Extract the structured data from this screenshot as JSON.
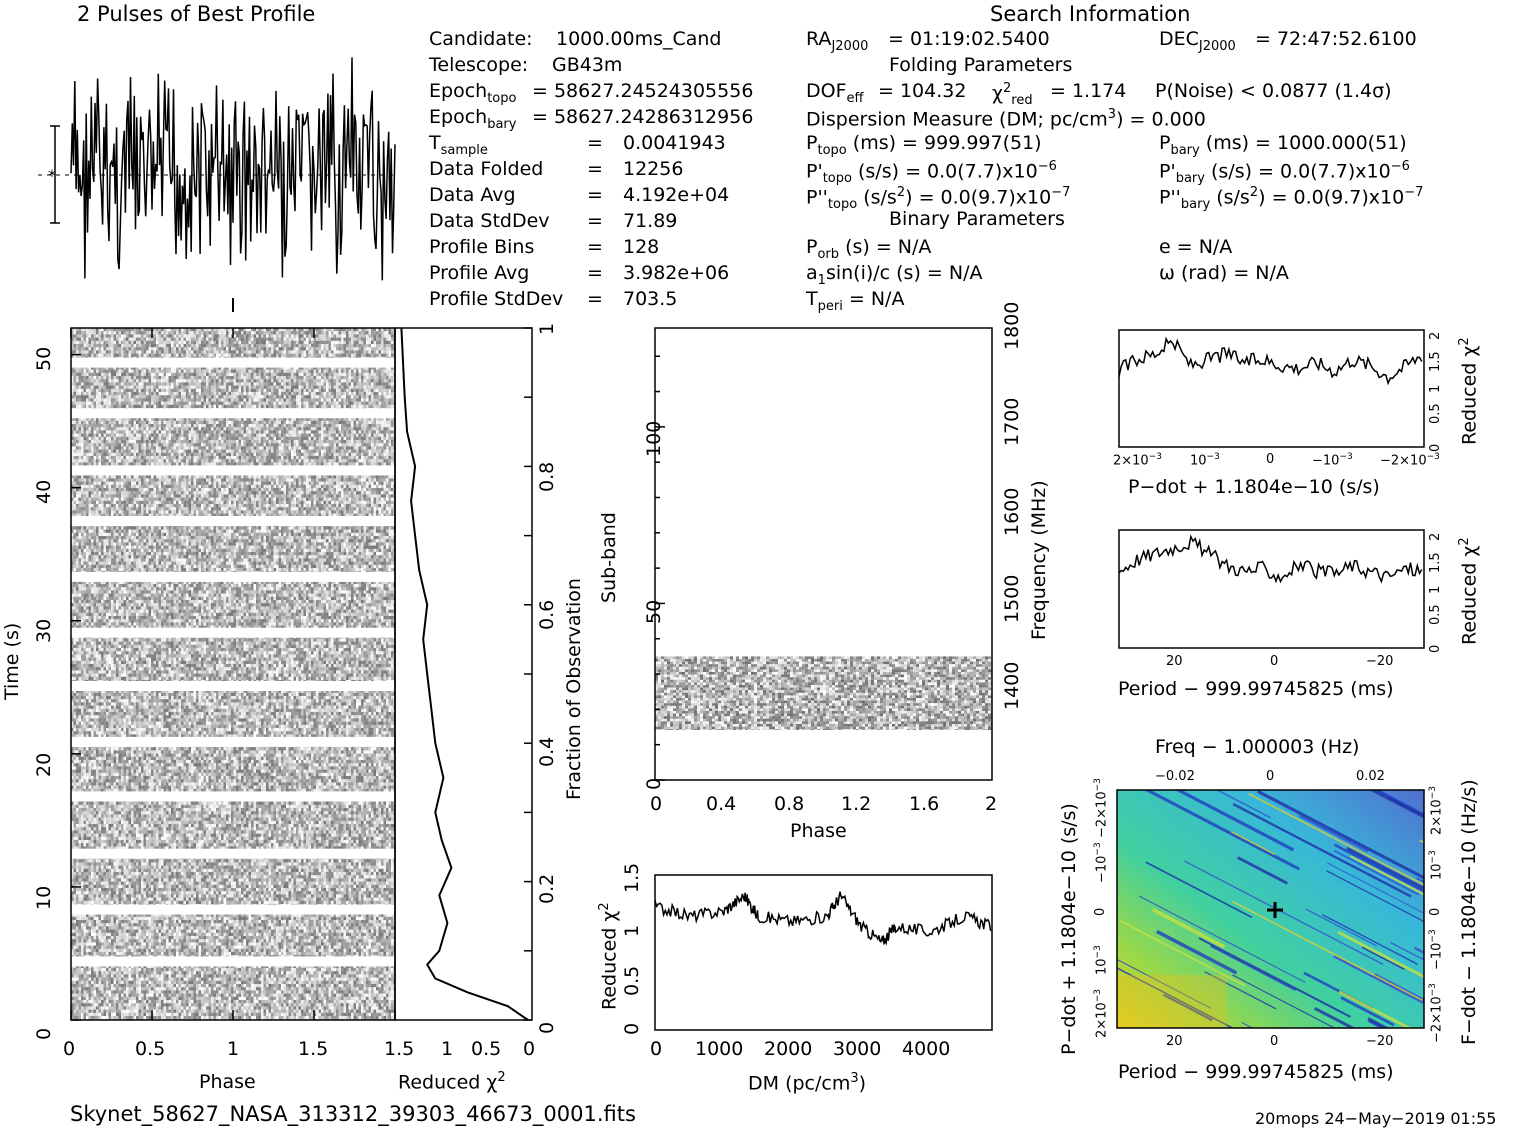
{
  "header": {
    "profile_title": "2 Pulses of Best Profile",
    "search_title": "Search Information",
    "folding_title": "Folding Parameters",
    "binary_title": "Binary Parameters"
  },
  "candidate_info": [
    {
      "label": "Candidate:",
      "value": "1000.00ms_Cand"
    },
    {
      "label": "Telescope:",
      "value": "GB43m"
    },
    {
      "label": "Epoch",
      "sub": "topo",
      "value": "= 58627.24524305556"
    },
    {
      "label": "Epoch",
      "sub": "bary",
      "value": "= 58627.24286312956"
    },
    {
      "label": "T",
      "sub": "sample",
      "value": "0.0041943"
    },
    {
      "label": "Data Folded",
      "value": "12256"
    },
    {
      "label": "Data Avg",
      "value": "4.192e+04"
    },
    {
      "label": "Data StdDev",
      "value": "71.89"
    },
    {
      "label": "Profile Bins",
      "value": "128"
    },
    {
      "label": "Profile Avg",
      "value": "3.982e+06"
    },
    {
      "label": "Profile StdDev",
      "value": "703.5"
    }
  ],
  "search_info": {
    "ra": "= 01:19:02.5400",
    "dec": "= 72:47:52.6100",
    "dof": "= 104.32",
    "chi2_red": "= 1.174",
    "p_noise": "P(Noise) < 0.0877   (1.4σ)",
    "dm": "Dispersion Measure (DM; pc/cm",
    "dm_value": ") = 0.000",
    "p_topo": "(ms) =  999.997(51)",
    "p_bary": "(ms) =  1000.000(51)",
    "pd_topo": "(s/s) = 0.0(7.7)x10",
    "pd_bary": "(s/s) = 0.0(7.7)x10",
    "pd_exp": "−6",
    "pdd_topo": "= 0.0(9.7)x10",
    "pdd_bary": "= 0.0(9.7)x10",
    "pdd_exp": "−7",
    "p_orb": "(s) = N/A",
    "e": "e = N/A",
    "a1": "sin(i)/c (s) = N/A",
    "omega": "ω (rad) = N/A",
    "t_peri": "= N/A"
  },
  "footer": {
    "filename": "Skynet_58627_NASA_313312_39303_46673_0001.fits",
    "stamp": "20mops 24−May−2019 01:55"
  },
  "colors": {
    "ink": "#000000",
    "block_light": "#f0f0f0",
    "block_dark": "#202020"
  },
  "chart_data": [
    {
      "type": "line",
      "title": "2 Pulses of Best Profile",
      "xlabel": "",
      "ylabel": "",
      "xlim": [
        0,
        2
      ],
      "note_pulses": 2
    },
    {
      "type": "heatmap",
      "xlabel": "Phase",
      "ylabel": "Time (s)",
      "xlim": [
        0,
        2
      ],
      "ylim": [
        0,
        52
      ],
      "x_ticks": [
        "0",
        "0.5",
        "1",
        "1.5"
      ],
      "y_ticks": [
        "0",
        "10",
        "20",
        "30",
        "40",
        "50"
      ],
      "white_gaps_s": [
        4.4,
        8.3,
        12.5,
        16.8,
        20.9,
        25.1,
        29.1,
        33.3,
        37.5,
        41.3,
        45.6,
        49.4
      ]
    },
    {
      "type": "line",
      "xlabel": "Reduced χ",
      "ylabel": "Fraction of Observation",
      "xlim": [
        1.7,
        0
      ],
      "ylim": [
        0,
        1
      ],
      "x_ticks": [
        "1.5",
        "1",
        "0.5",
        "0"
      ],
      "y_ticks": [
        "0",
        "0.2",
        "0.4",
        "0.6",
        "0.8",
        "1"
      ],
      "x": [
        0.05,
        0.3,
        0.8,
        1.2,
        1.3,
        1.15,
        1.05,
        1.15,
        1.0,
        1.12,
        1.2,
        1.1,
        1.2,
        1.25,
        1.3,
        1.35,
        1.3,
        1.4,
        1.45,
        1.5,
        1.45,
        1.55,
        1.58,
        1.62
      ],
      "y": [
        0.0,
        0.02,
        0.04,
        0.06,
        0.08,
        0.1,
        0.14,
        0.18,
        0.22,
        0.26,
        0.3,
        0.35,
        0.4,
        0.45,
        0.5,
        0.55,
        0.6,
        0.65,
        0.7,
        0.75,
        0.8,
        0.85,
        0.9,
        1.0
      ]
    },
    {
      "type": "heatmap",
      "xlabel": "Phase",
      "ylabel": "Sub-band",
      "ylabel2": "Frequency (MHz)",
      "xlim": [
        0,
        2
      ],
      "ylim": [
        0,
        128
      ],
      "x_ticks": [
        "0",
        "0.4",
        "0.8",
        "1.2",
        "1.6",
        "2"
      ],
      "y_ticks": [
        "0",
        "50",
        "100"
      ],
      "y2_ticks": [
        "1400",
        "1500",
        "1600",
        "1700",
        "1800"
      ],
      "filled_subbands": [
        14,
        35
      ]
    },
    {
      "type": "line",
      "xlabel": "DM (pc/cm",
      "ylabel": "Reduced χ",
      "xlim": [
        0,
        4900
      ],
      "ylim": [
        0,
        1.5
      ],
      "x_ticks": [
        "0",
        "1000",
        "2000",
        "3000",
        "4000"
      ],
      "y_ticks": [
        "0",
        "0.5",
        "1",
        "1.5"
      ],
      "x": [
        0,
        500,
        1000,
        1300,
        1500,
        2000,
        2500,
        2700,
        3000,
        3300,
        3500,
        4000,
        4500,
        4900
      ],
      "y": [
        1.2,
        1.1,
        1.15,
        1.3,
        1.1,
        1.05,
        1.1,
        1.3,
        1.0,
        0.85,
        1.0,
        0.95,
        1.1,
        1.0
      ]
    },
    {
      "type": "line",
      "xlabel": "P−dot + 1.1804e−10 (s/s)",
      "ylabel": "Reduced χ",
      "ylim": [
        0,
        2
      ],
      "x_ticks": [
        "2×10",
        "10",
        "0",
        "−10",
        "−2×10"
      ],
      "x_tick_exp": "−3",
      "y_ticks": [
        "0",
        "0.5",
        "1",
        "1.5",
        "2"
      ],
      "y": [
        1.3,
        1.5,
        1.6,
        1.8,
        1.4,
        1.5,
        1.6,
        1.45,
        1.5,
        1.4,
        1.35,
        1.45,
        1.3,
        1.5,
        1.4,
        1.2,
        1.4,
        1.6
      ]
    },
    {
      "type": "line",
      "xlabel": "Period − 999.99745825 (ms)",
      "ylabel": "Reduced χ",
      "ylim": [
        0,
        2
      ],
      "x_ticks": [
        "20",
        "0",
        "−20"
      ],
      "y_ticks": [
        "0",
        "0.5",
        "1",
        "1.5",
        "2"
      ],
      "y": [
        1.3,
        1.5,
        1.6,
        1.7,
        1.8,
        1.6,
        1.4,
        1.3,
        1.35,
        1.2,
        1.4,
        1.3,
        1.25,
        1.4,
        1.3,
        1.2,
        1.35,
        1.3
      ]
    },
    {
      "type": "heatmap",
      "title": "Freq − 1.000003 (Hz)",
      "xlabel": "Period − 999.99745825 (ms)",
      "ylabel": "P−dot + 1.1804e−10 (s/s)",
      "ylabel2": "F−dot − 1.1804e−10 (Hz/s)",
      "x_ticks": [
        "20",
        "0",
        "−20"
      ],
      "x2_ticks": [
        "−0.02",
        "0",
        "0.02"
      ],
      "y_ticks": [
        "2×10",
        "10",
        "0",
        "−10",
        "−2×10"
      ],
      "y_tick_exp": "−3",
      "y2_ticks": [
        "−2×10",
        "−10",
        "0",
        "10",
        "2×10"
      ],
      "y2_tick_exp": "−3"
    }
  ]
}
